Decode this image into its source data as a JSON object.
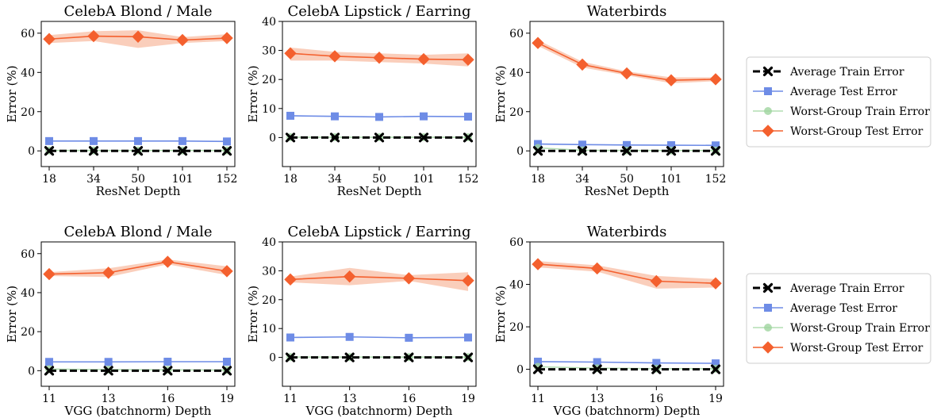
{
  "colors": {
    "avg_train": "#000000",
    "avg_test": "#6e8ce6",
    "wg_train": "#9fd49f",
    "wg_test": "#f4602e",
    "wg_test_band": "#f9c6af",
    "wg_train_band": "#cfe8cf",
    "avg_test_band": "#c9d4f5"
  },
  "legends": [
    {
      "items": [
        {
          "label": "Average Train Error",
          "series": "avg_train"
        },
        {
          "label": "Average Test Error",
          "series": "avg_test"
        },
        {
          "label": "Worst-Group Train Error",
          "series": "wg_train"
        },
        {
          "label": "Worst-Group Test Error",
          "series": "wg_test"
        }
      ]
    },
    {
      "items": [
        {
          "label": "Average Train Error",
          "series": "avg_train"
        },
        {
          "label": "Average Test Error",
          "series": "avg_test"
        },
        {
          "label": "Worst-Group Train Error",
          "series": "wg_train"
        },
        {
          "label": "Worst-Group Test Error",
          "series": "wg_test"
        }
      ]
    }
  ],
  "chart_data": [
    {
      "type": "line",
      "title": "CelebA Blond / Male",
      "xlabel": "ResNet Depth",
      "ylabel": "Error (%)",
      "categories": [
        "18",
        "34",
        "50",
        "101",
        "152"
      ],
      "ylim": [
        -8,
        66
      ],
      "yticks": [
        0,
        20,
        40,
        60
      ],
      "series": [
        {
          "key": "wg_test",
          "values": [
            57,
            58.5,
            58.2,
            56.5,
            57.5
          ],
          "band_low": [
            55,
            56,
            52.5,
            55,
            56
          ],
          "band_high": [
            59,
            61,
            61.5,
            58,
            59.5
          ]
        },
        {
          "key": "avg_test",
          "values": [
            5,
            5,
            5,
            5,
            4.8
          ]
        },
        {
          "key": "wg_train",
          "values": [
            0.2,
            0.2,
            0.2,
            0.2,
            0.2
          ]
        },
        {
          "key": "avg_train",
          "values": [
            0,
            0,
            0,
            0,
            0
          ]
        }
      ]
    },
    {
      "type": "line",
      "title": "CelebA Lipstick / Earring",
      "xlabel": "ResNet Depth",
      "ylabel": "Error (%)",
      "categories": [
        "18",
        "34",
        "50",
        "101",
        "152"
      ],
      "ylim": [
        -10,
        40
      ],
      "yticks": [
        0,
        10,
        20,
        30,
        40
      ],
      "series": [
        {
          "key": "wg_test",
          "values": [
            29,
            28,
            27.5,
            27,
            26.8
          ],
          "band_low": [
            26.5,
            26.5,
            26,
            25.5,
            24.5
          ],
          "band_high": [
            31,
            29.5,
            29,
            28.5,
            29
          ]
        },
        {
          "key": "avg_test",
          "values": [
            7.5,
            7.3,
            7.1,
            7.3,
            7.2
          ]
        },
        {
          "key": "wg_train",
          "values": [
            0.1,
            0.1,
            0.1,
            0.1,
            0.1
          ]
        },
        {
          "key": "avg_train",
          "values": [
            0,
            0,
            0,
            0,
            0
          ]
        }
      ]
    },
    {
      "type": "line",
      "title": "Waterbirds",
      "xlabel": "ResNet Depth",
      "ylabel": "Error (%)",
      "categories": [
        "18",
        "34",
        "50",
        "101",
        "152"
      ],
      "ylim": [
        -8,
        66
      ],
      "yticks": [
        0,
        20,
        40,
        60
      ],
      "series": [
        {
          "key": "wg_test",
          "values": [
            55,
            44,
            39.5,
            36,
            36.5
          ],
          "band_low": [
            53.5,
            42.5,
            38.5,
            34.5,
            35.5
          ],
          "band_high": [
            56.5,
            45.5,
            40.5,
            37.5,
            37.5
          ]
        },
        {
          "key": "avg_test",
          "values": [
            3.5,
            3.2,
            3,
            2.9,
            2.8
          ]
        },
        {
          "key": "wg_train",
          "values": [
            1.5,
            0.3,
            0.2,
            0.2,
            0.2
          ]
        },
        {
          "key": "avg_train",
          "values": [
            0,
            0,
            0,
            0,
            0
          ]
        }
      ]
    },
    {
      "type": "line",
      "title": "CelebA Blond / Male",
      "xlabel": "VGG (batchnorm) Depth",
      "ylabel": "Error (%)",
      "categories": [
        "11",
        "13",
        "16",
        "19"
      ],
      "ylim": [
        -8,
        66
      ],
      "yticks": [
        0,
        20,
        40,
        60
      ],
      "series": [
        {
          "key": "wg_test",
          "values": [
            49.5,
            50.2,
            55.8,
            51
          ],
          "band_low": [
            48.5,
            48,
            54.5,
            49
          ],
          "band_high": [
            50.5,
            52.5,
            57,
            53.5
          ]
        },
        {
          "key": "avg_test",
          "values": [
            4.5,
            4.5,
            4.6,
            4.6
          ]
        },
        {
          "key": "wg_train",
          "values": [
            0.8,
            0.5,
            0.4,
            0.3
          ]
        },
        {
          "key": "avg_train",
          "values": [
            0,
            0,
            0,
            0
          ]
        }
      ]
    },
    {
      "type": "line",
      "title": "CelebA Lipstick / Earring",
      "xlabel": "VGG (batchnorm) Depth",
      "ylabel": "Error (%)",
      "categories": [
        "11",
        "13",
        "16",
        "19"
      ],
      "ylim": [
        -10,
        40
      ],
      "yticks": [
        0,
        10,
        20,
        30,
        40
      ],
      "series": [
        {
          "key": "wg_test",
          "values": [
            27,
            28,
            27.4,
            26.6
          ],
          "band_low": [
            26,
            25,
            26.5,
            23
          ],
          "band_high": [
            28,
            31,
            28.5,
            29.5
          ]
        },
        {
          "key": "avg_test",
          "values": [
            6.9,
            7.1,
            6.8,
            6.9
          ]
        },
        {
          "key": "wg_train",
          "values": [
            0.1,
            0.1,
            0.1,
            0.1
          ]
        },
        {
          "key": "avg_train",
          "values": [
            0,
            0,
            0,
            0
          ]
        }
      ]
    },
    {
      "type": "line",
      "title": "Waterbirds",
      "xlabel": "VGG (batchnorm) Depth",
      "ylabel": "Error (%)",
      "categories": [
        "11",
        "13",
        "16",
        "19"
      ],
      "ylim": [
        -8,
        60
      ],
      "yticks": [
        0,
        20,
        40,
        60
      ],
      "series": [
        {
          "key": "wg_test",
          "values": [
            49.5,
            47.5,
            41.5,
            40.5
          ],
          "band_low": [
            48,
            46,
            38,
            38.5
          ],
          "band_high": [
            51,
            49,
            44,
            42.5
          ]
        },
        {
          "key": "avg_test",
          "values": [
            3.6,
            3.4,
            3,
            2.8
          ]
        },
        {
          "key": "wg_train",
          "values": [
            1.2,
            0.5,
            0.3,
            0.3
          ]
        },
        {
          "key": "avg_train",
          "values": [
            0,
            0,
            0,
            0
          ]
        }
      ]
    }
  ]
}
